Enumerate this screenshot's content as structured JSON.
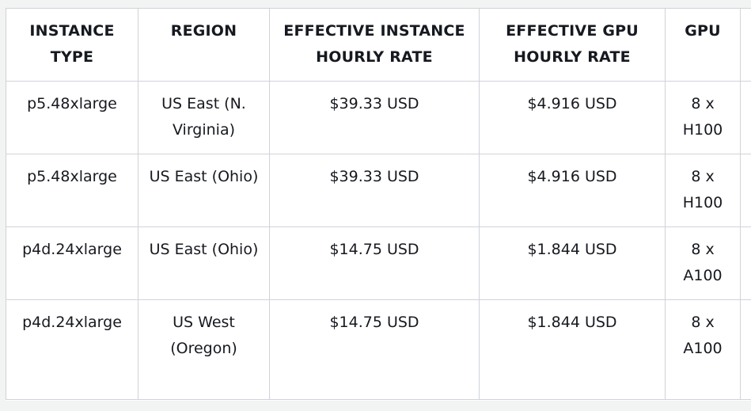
{
  "table": {
    "headers": [
      "INSTANCE TYPE",
      "REGION",
      "EFFECTIVE INSTANCE HOURLY RATE",
      "EFFECTIVE GPU HOURLY RATE",
      "GPU"
    ],
    "rows": [
      [
        "p5.48xlarge",
        "US East (N. Virginia)",
        "$39.33 USD",
        "$4.916 USD",
        "8 x H100"
      ],
      [
        "p5.48xlarge",
        "US East (Ohio)",
        "$39.33 USD",
        "$4.916 USD",
        "8 x H100"
      ],
      [
        "p4d.24xlarge",
        "US East (Ohio)",
        "$14.75 USD",
        "$1.844 USD",
        "8 x A100"
      ],
      [
        "p4d.24xlarge",
        "US West (Oregon)",
        "$14.75 USD",
        "$1.844 USD",
        "8 x A100"
      ]
    ]
  }
}
